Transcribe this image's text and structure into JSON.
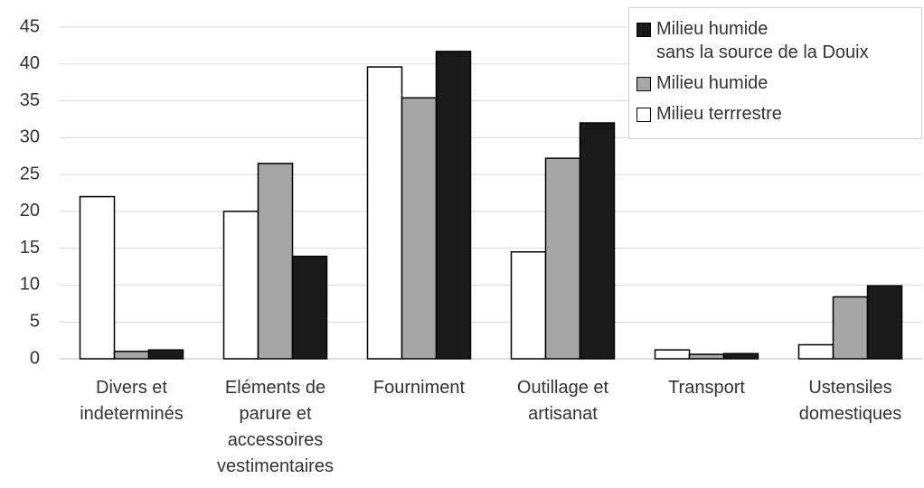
{
  "chart_data": {
    "type": "bar",
    "categories": [
      "Divers et\nindeterminés",
      "Eléments de\nparure et\naccessoires\nvestimentaires",
      "Fourniment",
      "Outillage et\nartisanat",
      "Transport",
      "Ustensiles\ndomestiques"
    ],
    "series": [
      {
        "name": "Milieu terrrestre",
        "color": "#ffffff",
        "values": [
          22,
          20,
          39.6,
          14.5,
          1.2,
          1.9
        ]
      },
      {
        "name": "Milieu humide",
        "color": "#a6a6a6",
        "values": [
          1,
          26.5,
          35.4,
          27.2,
          0.6,
          8.4
        ]
      },
      {
        "name": "Milieu humide\nsans la source de la Douix",
        "color": "#1a1a1a",
        "values": [
          1.2,
          13.9,
          41.7,
          32,
          0.7,
          9.9
        ]
      }
    ],
    "ylim": [
      0,
      45
    ],
    "yticks": [
      0,
      5,
      10,
      15,
      20,
      25,
      30,
      35,
      40,
      45
    ],
    "grid": true,
    "legend": "top-right"
  }
}
